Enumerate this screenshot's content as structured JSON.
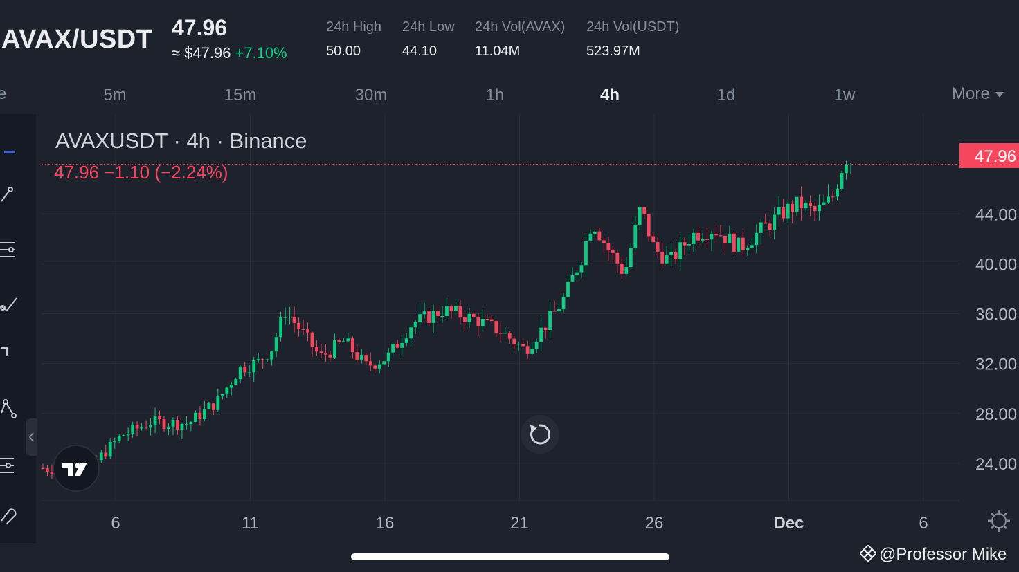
{
  "header": {
    "pair": "AVAX/USDT",
    "last_price": "47.96",
    "fiat_price": "≈ $47.96",
    "change_pct": "+7.10%",
    "stats": [
      {
        "label": "24h High",
        "value": "50.00"
      },
      {
        "label": "24h Low",
        "value": "44.10"
      },
      {
        "label": "24h Vol(AVAX)",
        "value": "11.04M"
      },
      {
        "label": "24h Vol(USDT)",
        "value": "523.97M"
      }
    ]
  },
  "timeframes": {
    "edge_fragment": "e",
    "items": [
      "5m",
      "15m",
      "30m",
      "1h",
      "4h",
      "1d",
      "1w"
    ],
    "active": "4h",
    "more_label": "More"
  },
  "chart_data": {
    "type": "candlestick",
    "title": "AVAXUSDT · 4h · Binance",
    "legend_values": "47.96 −1.10 (−2.24%)",
    "current_price_label": "47.96",
    "y_ticks": [
      "24.00",
      "28.00",
      "32.00",
      "36.00",
      "40.00",
      "44.00"
    ],
    "ylim": [
      21,
      52
    ],
    "x_ticks": [
      {
        "label": "6",
        "day": 6
      },
      {
        "label": "11",
        "day": 11
      },
      {
        "label": "16",
        "day": 16
      },
      {
        "label": "21",
        "day": 21
      },
      {
        "label": "26",
        "day": 26
      },
      {
        "label": "Dec",
        "day": 31,
        "bold": true
      },
      {
        "label": "6",
        "day": 36
      }
    ],
    "up_color": "#0ecb81",
    "down_color": "#f6465d",
    "price_anchors": [
      {
        "day": 3.3,
        "price": 23.6
      },
      {
        "day": 4.6,
        "price": 23.4
      },
      {
        "day": 5.2,
        "price": 24.0
      },
      {
        "day": 6.2,
        "price": 26.2
      },
      {
        "day": 7.3,
        "price": 27.3
      },
      {
        "day": 8.7,
        "price": 27.2
      },
      {
        "day": 9.8,
        "price": 29.0
      },
      {
        "day": 10.6,
        "price": 31.6
      },
      {
        "day": 11.3,
        "price": 32.1
      },
      {
        "day": 11.8,
        "price": 33.2
      },
      {
        "day": 12.3,
        "price": 36.2
      },
      {
        "day": 12.9,
        "price": 34.6
      },
      {
        "day": 13.6,
        "price": 32.5
      },
      {
        "day": 14.5,
        "price": 33.8
      },
      {
        "day": 15.3,
        "price": 31.8
      },
      {
        "day": 16.1,
        "price": 32.5
      },
      {
        "day": 17.0,
        "price": 35.2
      },
      {
        "day": 18.2,
        "price": 36.3
      },
      {
        "day": 19.4,
        "price": 35.5
      },
      {
        "day": 20.3,
        "price": 34.6
      },
      {
        "day": 21.2,
        "price": 33.1
      },
      {
        "day": 22.0,
        "price": 35.2
      },
      {
        "day": 22.6,
        "price": 37.0
      },
      {
        "day": 23.3,
        "price": 40.5
      },
      {
        "day": 23.7,
        "price": 43.5
      },
      {
        "day": 24.2,
        "price": 41.5
      },
      {
        "day": 24.9,
        "price": 39.2
      },
      {
        "day": 25.5,
        "price": 44.5
      },
      {
        "day": 26.0,
        "price": 41.2
      },
      {
        "day": 26.6,
        "price": 40.2
      },
      {
        "day": 27.4,
        "price": 42.3
      },
      {
        "day": 28.2,
        "price": 42.8
      },
      {
        "day": 29.2,
        "price": 41.3
      },
      {
        "day": 30.2,
        "price": 43.1
      },
      {
        "day": 30.9,
        "price": 44.3
      },
      {
        "day": 31.4,
        "price": 44.8
      },
      {
        "day": 32.0,
        "price": 44.1
      },
      {
        "day": 32.6,
        "price": 45.2
      },
      {
        "day": 33.0,
        "price": 47.9
      },
      {
        "day": 33.3,
        "price": 47.96
      }
    ]
  },
  "watermark": "@Professor Mike",
  "colors": {
    "background": "#1e222d",
    "grid": "#2a2e39",
    "price_line": "#f6465d"
  }
}
